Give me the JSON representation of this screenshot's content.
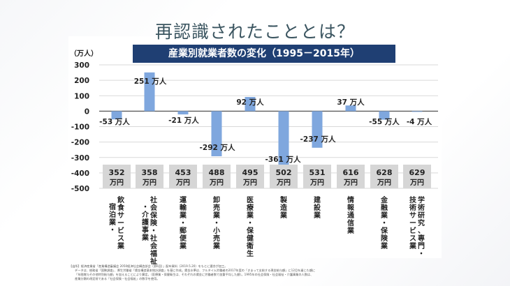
{
  "page": {
    "title": "再認識されたこととは？",
    "footnote": [
      "【出所】経済産業省「産業構造審議会 2050経済社会構造部会（第6回）」配布資料（2019.5.20）をもとに選合が加工。",
      "データは、総務省「国勢調査」、厚生労働省「賃金構造基本統計調査」を基に作成。賃金水準は、フルタイム労働者の2017年度の「きまって支給する現金給与額」に12月を乗じた額に",
      "「年間賞与その他特別給与額」を加えることにより算定。（医療業・保健衛生は、それぞれの賃金に労働者数で加重平均した額）。1995年の社会保険・社会福祉・介護事業の人数は、",
      "産業分類の改定前である「社会保険・社会福祉」の数字を使用。"
    ]
  },
  "chart_data": {
    "type": "bar",
    "title": "産業別就業者数の変化（1995－2015年）",
    "ylabel": "（万人）",
    "xlabel": "",
    "ylim": [
      -500,
      300
    ],
    "yticks": [
      300,
      200,
      100,
      0,
      -100,
      -200,
      -300,
      -400,
      -500
    ],
    "grid": true,
    "legend": "none",
    "bar_color": "#7fa7de",
    "title_bg_color": "#1f3f73",
    "categories": [
      [
        "飲食サービス業",
        "宿泊業・"
      ],
      [
        "社会保険・社会福祉",
        "・介護事業"
      ],
      [
        "運輸業・郵便業"
      ],
      [
        "卸売業・小売業"
      ],
      [
        "医療業・保健衛生"
      ],
      [
        "製造業"
      ],
      [
        "建設業"
      ],
      [
        "情報通信業"
      ],
      [
        "金融業・保険業"
      ],
      [
        "学術研究、専門・",
        "技術サービス業"
      ]
    ],
    "values": [
      -53,
      251,
      -21,
      -292,
      92,
      -361,
      -237,
      37,
      -55,
      -4
    ],
    "data_labels": [
      "-53 万人",
      "251 万人",
      "-21 万人",
      "-292 万人",
      "92 万人",
      "-361 万人",
      "-237 万人",
      "37 万人",
      "-55 万人",
      "-4 万人"
    ],
    "wages": [
      "352",
      "358",
      "453",
      "488",
      "495",
      "502",
      "531",
      "616",
      "628",
      "629"
    ],
    "wage_unit": "万円"
  }
}
